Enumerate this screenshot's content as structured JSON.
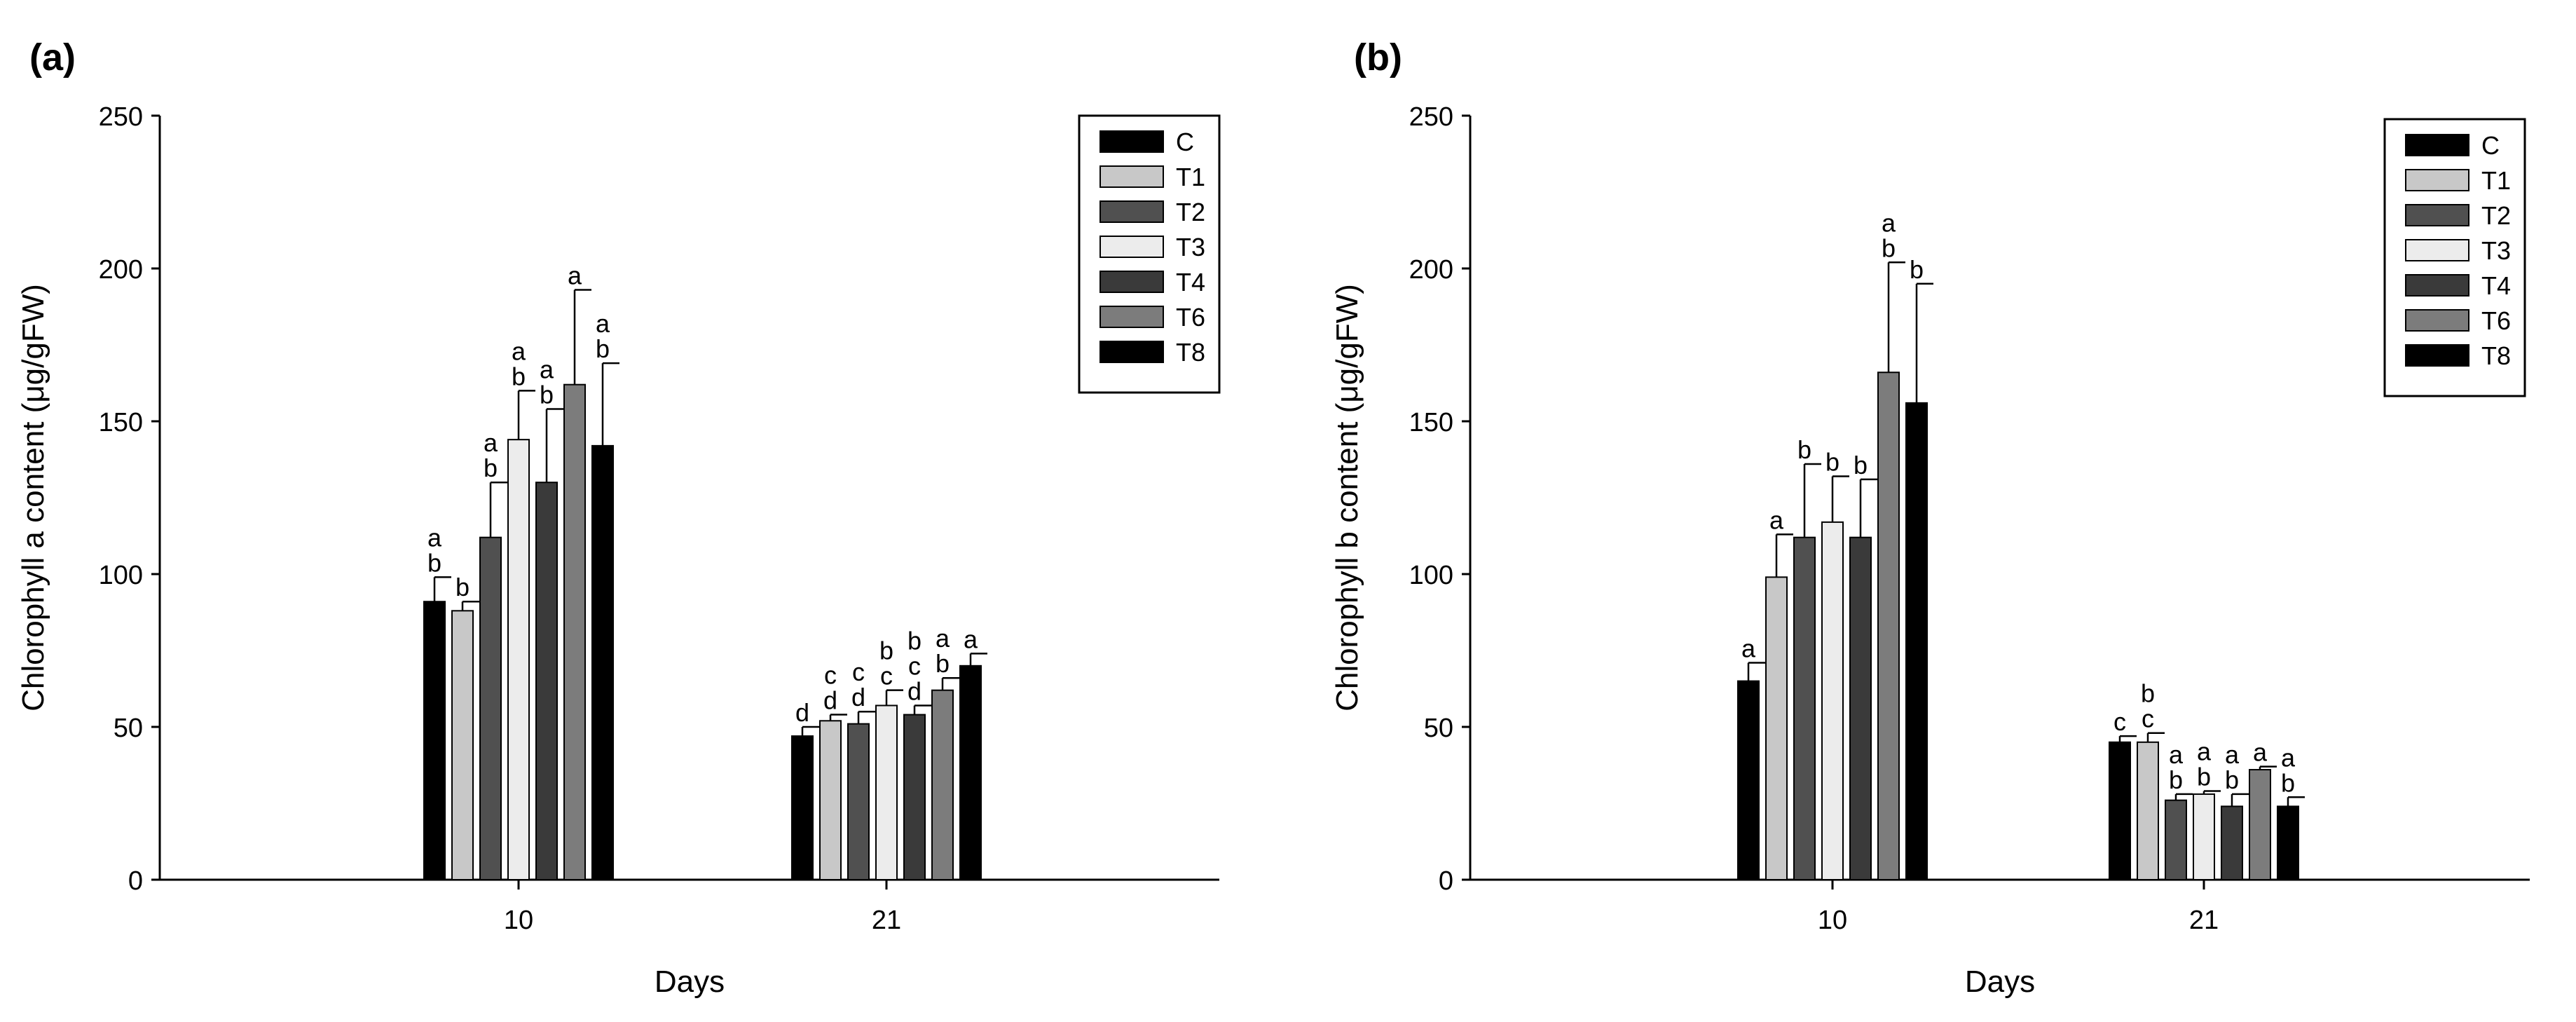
{
  "chart_data": [
    {
      "panel_label": "(a)",
      "type": "bar",
      "xlabel": "Days",
      "ylabel": "Chlorophyll a content (μg/gFW)",
      "ylim": [
        0,
        250
      ],
      "yticks": [
        0,
        50,
        100,
        150,
        200,
        250
      ],
      "categories": [
        "10",
        "21"
      ],
      "legend_position": "top-right",
      "series": [
        {
          "name": "C",
          "color": "#000000",
          "values": [
            91,
            47
          ],
          "errors": [
            8,
            3
          ],
          "letters": [
            "a\nb",
            "d"
          ]
        },
        {
          "name": "T1",
          "color": "#c8c8c8",
          "values": [
            88,
            52
          ],
          "errors": [
            3,
            2
          ],
          "letters": [
            "b",
            "c\nd"
          ]
        },
        {
          "name": "T2",
          "color": "#505050",
          "values": [
            112,
            51
          ],
          "errors": [
            18,
            4
          ],
          "letters": [
            "a\nb",
            "c\nd"
          ]
        },
        {
          "name": "T3",
          "color": "#ececec",
          "values": [
            144,
            57
          ],
          "errors": [
            16,
            5
          ],
          "letters": [
            "a\nb",
            "b\nc"
          ]
        },
        {
          "name": "T4",
          "color": "#3a3a3a",
          "values": [
            130,
            54
          ],
          "errors": [
            24,
            3
          ],
          "letters": [
            "a\nb",
            "b\nc\nd"
          ]
        },
        {
          "name": "T6",
          "color": "#7c7c7c",
          "values": [
            162,
            62
          ],
          "errors": [
            31,
            4
          ],
          "letters": [
            "a",
            "a\nb"
          ]
        },
        {
          "name": "T8",
          "color": "#000000",
          "values": [
            142,
            70
          ],
          "errors": [
            27,
            4
          ],
          "letters": [
            "a\nb",
            "a"
          ]
        }
      ]
    },
    {
      "panel_label": "(b)",
      "type": "bar",
      "xlabel": "Days",
      "ylabel": "Chlorophyll b content (μg/gFW)",
      "ylim": [
        0,
        250
      ],
      "yticks": [
        0,
        50,
        100,
        150,
        200,
        250
      ],
      "categories": [
        "10",
        "21"
      ],
      "legend_position": "top-right",
      "series": [
        {
          "name": "C",
          "color": "#000000",
          "values": [
            65,
            45
          ],
          "errors": [
            6,
            2
          ],
          "letters": [
            "a",
            "c"
          ]
        },
        {
          "name": "T1",
          "color": "#c8c8c8",
          "values": [
            99,
            45
          ],
          "errors": [
            14,
            3
          ],
          "letters": [
            "a",
            "b\nc"
          ]
        },
        {
          "name": "T2",
          "color": "#505050",
          "values": [
            112,
            26
          ],
          "errors": [
            24,
            2
          ],
          "letters": [
            "b",
            "a\nb"
          ]
        },
        {
          "name": "T3",
          "color": "#ececec",
          "values": [
            117,
            28
          ],
          "errors": [
            15,
            1
          ],
          "letters": [
            "b",
            "a\nb"
          ]
        },
        {
          "name": "T4",
          "color": "#3a3a3a",
          "values": [
            112,
            24
          ],
          "errors": [
            19,
            4
          ],
          "letters": [
            "b",
            "a\nb"
          ]
        },
        {
          "name": "T6",
          "color": "#7c7c7c",
          "values": [
            166,
            36
          ],
          "errors": [
            36,
            1
          ],
          "letters": [
            "a\nb",
            "a"
          ]
        },
        {
          "name": "T8",
          "color": "#000000",
          "values": [
            156,
            24
          ],
          "errors": [
            39,
            3
          ],
          "letters": [
            "b",
            "a\nb"
          ]
        }
      ]
    }
  ]
}
